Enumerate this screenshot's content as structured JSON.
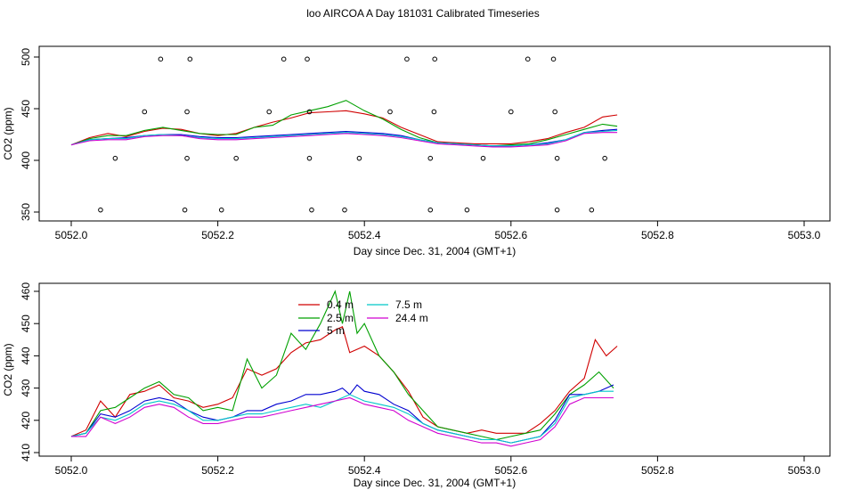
{
  "title": "loo AIRCOA A  Day 181031  Calibrated Timeseries",
  "colors": {
    "0.4 m": "#d00000",
    "2.5 m": "#00a000",
    "5 m": "#0000d0",
    "7.5 m": "#00c8c8",
    "24.4 m": "#d000d0"
  },
  "chart_data": [
    {
      "type": "scatter",
      "xlabel": "Day since Dec. 31, 2004 (GMT+1)",
      "ylabel": "CO2 (ppm)",
      "xlim": [
        5052.0,
        5053.0
      ],
      "ylim": [
        350,
        500
      ],
      "x_ticks": [
        "5052.0",
        "5052.2",
        "5052.4",
        "5052.6",
        "5052.8",
        "5053.0"
      ],
      "y_ticks": [
        "350",
        "400",
        "450",
        "500"
      ],
      "grid": false,
      "series": [
        {
          "name": "0.4 m",
          "x": [
            5052.0,
            5052.025,
            5052.05,
            5052.075,
            5052.1,
            5052.125,
            5052.15,
            5052.175,
            5052.2,
            5052.225,
            5052.25,
            5052.275,
            5052.3,
            5052.325,
            5052.35,
            5052.375,
            5052.4,
            5052.425,
            5052.45,
            5052.475,
            5052.5,
            5052.525,
            5052.55,
            5052.575,
            5052.6,
            5052.625,
            5052.65,
            5052.675,
            5052.7,
            5052.725,
            5052.745
          ],
          "y": [
            415,
            422,
            426,
            423,
            428,
            431,
            430,
            426,
            424,
            426,
            432,
            437,
            441,
            446,
            447,
            448,
            445,
            441,
            432,
            425,
            418,
            417,
            416,
            416,
            416,
            418,
            421,
            427,
            432,
            442,
            444
          ]
        },
        {
          "name": "2.5 m",
          "x": [
            5052.0,
            5052.025,
            5052.05,
            5052.075,
            5052.1,
            5052.125,
            5052.15,
            5052.175,
            5052.2,
            5052.225,
            5052.25,
            5052.275,
            5052.3,
            5052.325,
            5052.35,
            5052.375,
            5052.4,
            5052.425,
            5052.45,
            5052.475,
            5052.5,
            5052.525,
            5052.55,
            5052.575,
            5052.6,
            5052.625,
            5052.65,
            5052.675,
            5052.7,
            5052.725,
            5052.745
          ],
          "y": [
            415,
            421,
            424,
            424,
            429,
            432,
            429,
            426,
            425,
            425,
            432,
            434,
            444,
            448,
            452,
            458,
            448,
            440,
            430,
            422,
            417,
            416,
            415,
            414,
            415,
            416,
            420,
            425,
            430,
            435,
            433
          ]
        },
        {
          "name": "5 m",
          "x": [
            5052.0,
            5052.025,
            5052.05,
            5052.075,
            5052.1,
            5052.125,
            5052.15,
            5052.175,
            5052.2,
            5052.225,
            5052.25,
            5052.275,
            5052.3,
            5052.325,
            5052.35,
            5052.375,
            5052.4,
            5052.425,
            5052.45,
            5052.475,
            5052.5,
            5052.525,
            5052.55,
            5052.575,
            5052.6,
            5052.625,
            5052.65,
            5052.675,
            5052.7,
            5052.725,
            5052.745
          ],
          "y": [
            415,
            420,
            421,
            422,
            424,
            425,
            425,
            423,
            422,
            422,
            423,
            424,
            425,
            426,
            427,
            428,
            427,
            426,
            424,
            420,
            417,
            416,
            415,
            414,
            414,
            415,
            417,
            420,
            427,
            429,
            430
          ]
        },
        {
          "name": "7.5 m",
          "x": [
            5052.0,
            5052.025,
            5052.05,
            5052.075,
            5052.1,
            5052.125,
            5052.15,
            5052.175,
            5052.2,
            5052.225,
            5052.25,
            5052.275,
            5052.3,
            5052.325,
            5052.35,
            5052.375,
            5052.4,
            5052.425,
            5052.45,
            5052.475,
            5052.5,
            5052.525,
            5052.55,
            5052.575,
            5052.6,
            5052.625,
            5052.65,
            5052.675,
            5052.7,
            5052.725,
            5052.745
          ],
          "y": [
            415,
            420,
            421,
            421,
            424,
            425,
            424,
            422,
            421,
            421,
            422,
            423,
            424,
            425,
            426,
            427,
            426,
            425,
            423,
            420,
            417,
            416,
            415,
            414,
            414,
            415,
            416,
            420,
            427,
            428,
            429
          ]
        },
        {
          "name": "24.4 m",
          "x": [
            5052.0,
            5052.025,
            5052.05,
            5052.075,
            5052.1,
            5052.125,
            5052.15,
            5052.175,
            5052.2,
            5052.225,
            5052.25,
            5052.275,
            5052.3,
            5052.325,
            5052.35,
            5052.375,
            5052.4,
            5052.425,
            5052.45,
            5052.475,
            5052.5,
            5052.525,
            5052.55,
            5052.575,
            5052.6,
            5052.625,
            5052.65,
            5052.675,
            5052.7,
            5052.725,
            5052.745
          ],
          "y": [
            415,
            419,
            420,
            420,
            423,
            424,
            424,
            421,
            420,
            420,
            421,
            422,
            423,
            424,
            425,
            426,
            425,
            424,
            422,
            419,
            416,
            415,
            414,
            413,
            413,
            414,
            415,
            419,
            426,
            427,
            427
          ]
        },
        {
          "name": "",
          "x": [
            5052.04,
            5052.155,
            5052.205,
            5052.328,
            5052.373,
            5052.49,
            5052.54,
            5052.663,
            5052.71,
            5052.06,
            5052.158,
            5052.225,
            5052.325,
            5052.393,
            5052.49,
            5052.562,
            5052.663,
            5052.728,
            5052.1,
            5052.158,
            5052.27,
            5052.325,
            5052.435,
            5052.495,
            5052.6,
            5052.66,
            5052.122,
            5052.162,
            5052.29,
            5052.322,
            5052.458,
            5052.496,
            5052.623,
            5052.658
          ],
          "y": [
            352,
            352,
            352,
            352,
            352,
            352,
            352,
            352,
            352,
            402,
            402,
            402,
            402,
            402,
            402,
            402,
            402,
            402,
            447,
            447,
            447,
            447,
            447,
            447,
            447,
            447,
            498,
            498,
            498,
            498,
            498,
            498,
            498,
            498
          ],
          "marker": "circle"
        }
      ]
    },
    {
      "type": "line",
      "xlabel": "Day since Dec. 31, 2004 (GMT+1)",
      "ylabel": "CO2 (ppm)",
      "xlim": [
        5052.0,
        5053.0
      ],
      "ylim": [
        410,
        460
      ],
      "x_ticks": [
        "5052.0",
        "5052.2",
        "5052.4",
        "5052.6",
        "5052.8",
        "5053.0"
      ],
      "y_ticks": [
        "410",
        "420",
        "430",
        "440",
        "450",
        "460"
      ],
      "grid": false,
      "legend": [
        "0.4 m",
        "2.5 m",
        "5 m",
        "7.5 m",
        "24.4 m"
      ],
      "legend_position": "top-center",
      "series": [
        {
          "name": "0.4 m",
          "x": [
            5052.0,
            5052.02,
            5052.04,
            5052.06,
            5052.08,
            5052.1,
            5052.12,
            5052.14,
            5052.16,
            5052.18,
            5052.2,
            5052.22,
            5052.24,
            5052.26,
            5052.28,
            5052.3,
            5052.32,
            5052.34,
            5052.36,
            5052.37,
            5052.38,
            5052.4,
            5052.42,
            5052.44,
            5052.46,
            5052.48,
            5052.5,
            5052.52,
            5052.54,
            5052.56,
            5052.58,
            5052.6,
            5052.62,
            5052.64,
            5052.66,
            5052.68,
            5052.7,
            5052.715,
            5052.73,
            5052.745
          ],
          "y": [
            415,
            417,
            426,
            421,
            428,
            429,
            431,
            427,
            426,
            424,
            425,
            427,
            436,
            434,
            436,
            441,
            444,
            445,
            448,
            449,
            441,
            443,
            440,
            435,
            429,
            421,
            418,
            417,
            416,
            417,
            416,
            416,
            416,
            419,
            423,
            429,
            433,
            445,
            440,
            443
          ]
        },
        {
          "name": "2.5 m",
          "x": [
            5052.0,
            5052.02,
            5052.04,
            5052.06,
            5052.08,
            5052.1,
            5052.12,
            5052.14,
            5052.16,
            5052.18,
            5052.2,
            5052.22,
            5052.24,
            5052.26,
            5052.28,
            5052.3,
            5052.32,
            5052.34,
            5052.36,
            5052.37,
            5052.38,
            5052.39,
            5052.4,
            5052.42,
            5052.44,
            5052.46,
            5052.48,
            5052.5,
            5052.52,
            5052.54,
            5052.56,
            5052.58,
            5052.6,
            5052.62,
            5052.64,
            5052.66,
            5052.68,
            5052.7,
            5052.72,
            5052.74
          ],
          "y": [
            415,
            416,
            423,
            424,
            427,
            430,
            432,
            428,
            427,
            423,
            424,
            423,
            439,
            430,
            434,
            447,
            442,
            450,
            460,
            450,
            460,
            447,
            450,
            440,
            435,
            428,
            423,
            418,
            417,
            416,
            415,
            414,
            415,
            416,
            417,
            422,
            428,
            431,
            435,
            430
          ]
        },
        {
          "name": "5 m",
          "x": [
            5052.0,
            5052.02,
            5052.04,
            5052.06,
            5052.08,
            5052.1,
            5052.12,
            5052.14,
            5052.16,
            5052.18,
            5052.2,
            5052.22,
            5052.24,
            5052.26,
            5052.28,
            5052.3,
            5052.32,
            5052.34,
            5052.36,
            5052.37,
            5052.38,
            5052.39,
            5052.4,
            5052.42,
            5052.44,
            5052.46,
            5052.48,
            5052.5,
            5052.52,
            5052.54,
            5052.56,
            5052.58,
            5052.6,
            5052.62,
            5052.64,
            5052.66,
            5052.68,
            5052.7,
            5052.72,
            5052.74
          ],
          "y": [
            415,
            416,
            422,
            421,
            423,
            426,
            427,
            426,
            423,
            421,
            420,
            421,
            423,
            423,
            425,
            426,
            428,
            428,
            429,
            430,
            428,
            431,
            429,
            428,
            425,
            423,
            419,
            417,
            416,
            415,
            414,
            414,
            413,
            414,
            415,
            420,
            428,
            428,
            429,
            431
          ]
        },
        {
          "name": "7.5 m",
          "x": [
            5052.0,
            5052.02,
            5052.04,
            5052.06,
            5052.08,
            5052.1,
            5052.12,
            5052.14,
            5052.16,
            5052.18,
            5052.2,
            5052.22,
            5052.24,
            5052.26,
            5052.28,
            5052.3,
            5052.32,
            5052.34,
            5052.36,
            5052.38,
            5052.4,
            5052.42,
            5052.44,
            5052.46,
            5052.48,
            5052.5,
            5052.52,
            5052.54,
            5052.56,
            5052.58,
            5052.6,
            5052.62,
            5052.64,
            5052.66,
            5052.68,
            5052.7,
            5052.72,
            5052.74
          ],
          "y": [
            415,
            416,
            421,
            420,
            422,
            425,
            426,
            425,
            423,
            420,
            420,
            421,
            422,
            422,
            423,
            424,
            425,
            424,
            426,
            428,
            426,
            425,
            424,
            422,
            419,
            417,
            416,
            415,
            414,
            414,
            413,
            414,
            415,
            419,
            427,
            428,
            429,
            429
          ]
        },
        {
          "name": "24.4 m",
          "x": [
            5052.0,
            5052.02,
            5052.04,
            5052.06,
            5052.08,
            5052.1,
            5052.12,
            5052.14,
            5052.16,
            5052.18,
            5052.2,
            5052.22,
            5052.24,
            5052.26,
            5052.28,
            5052.3,
            5052.32,
            5052.34,
            5052.36,
            5052.38,
            5052.4,
            5052.42,
            5052.44,
            5052.46,
            5052.48,
            5052.5,
            5052.52,
            5052.54,
            5052.56,
            5052.58,
            5052.6,
            5052.62,
            5052.64,
            5052.66,
            5052.68,
            5052.7,
            5052.72,
            5052.74
          ],
          "y": [
            415,
            415,
            421,
            419,
            421,
            424,
            425,
            424,
            421,
            419,
            419,
            420,
            421,
            421,
            422,
            423,
            424,
            425,
            426,
            427,
            425,
            424,
            423,
            420,
            418,
            416,
            415,
            414,
            413,
            413,
            412,
            413,
            414,
            418,
            425,
            427,
            427,
            427
          ]
        }
      ]
    }
  ]
}
